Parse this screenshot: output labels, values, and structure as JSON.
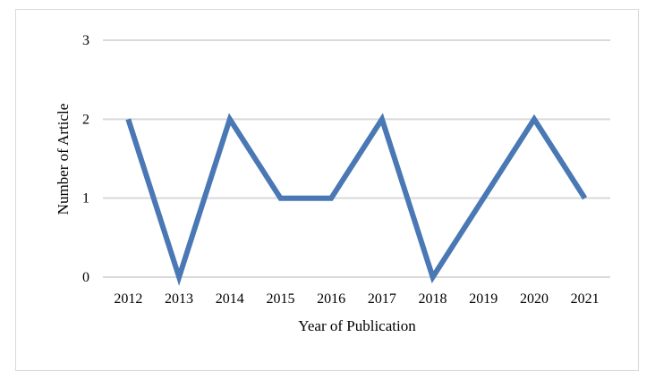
{
  "chart_data": {
    "type": "line",
    "title": "",
    "xlabel": "Year of Publication",
    "ylabel": "Number of Article",
    "categories": [
      "2012",
      "2013",
      "2014",
      "2015",
      "2016",
      "2017",
      "2018",
      "2019",
      "2020",
      "2021"
    ],
    "series": [
      {
        "values": [
          2,
          0,
          2,
          1,
          1,
          2,
          0,
          1,
          2,
          1
        ]
      }
    ],
    "ylim": [
      0,
      3
    ],
    "yticks": [
      "0",
      "1",
      "2",
      "3"
    ],
    "grid": true,
    "legend": "none",
    "colors": {
      "series": "#4a78b4",
      "grid": "#d9d9d9",
      "border": "#d9d9d9"
    }
  }
}
